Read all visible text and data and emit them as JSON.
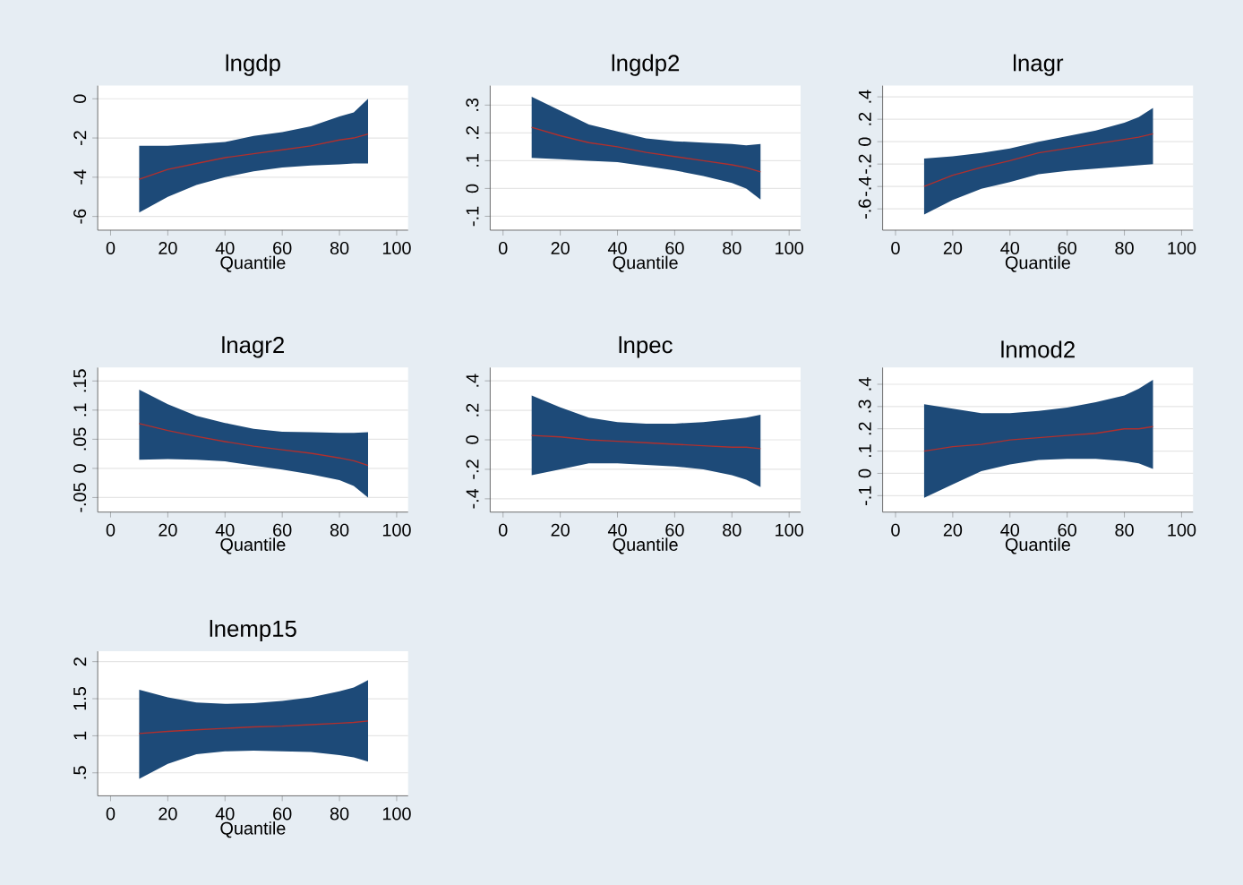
{
  "chart_data": [
    {
      "type": "line",
      "title": "lngdp",
      "xlabel": "Quantile",
      "xlim": [
        -4.5,
        104
      ],
      "xticks": [
        0,
        20,
        40,
        60,
        80,
        100
      ],
      "ylim": [
        -6.7,
        0.67
      ],
      "yticks": [
        -6,
        -4,
        -2,
        0
      ],
      "grid": "y",
      "x": [
        10,
        20,
        30,
        40,
        50,
        60,
        70,
        80,
        85,
        90
      ],
      "series": [
        {
          "color": "#b0302e",
          "values": [
            -4.1,
            -3.6,
            -3.3,
            -3.0,
            -2.8,
            -2.6,
            -2.4,
            -2.1,
            -2.0,
            -1.8
          ],
          "lower": [
            -5.8,
            -5.0,
            -4.4,
            -4.0,
            -3.7,
            -3.5,
            -3.4,
            -3.35,
            -3.3,
            -3.3
          ],
          "upper": [
            -2.4,
            -2.4,
            -2.3,
            -2.2,
            -1.9,
            -1.7,
            -1.4,
            -0.9,
            -0.7,
            0
          ]
        }
      ]
    },
    {
      "type": "line",
      "title": "lngdp2",
      "xlabel": "Quantile",
      "xlim": [
        -4.5,
        104
      ],
      "xticks": [
        0,
        20,
        40,
        60,
        80,
        100
      ],
      "ylim": [
        -0.15,
        0.37
      ],
      "yticks": [
        {
          "value": -0.1,
          "label": "-.1"
        },
        0,
        {
          "value": 0.1,
          "label": ".1"
        },
        {
          "value": 0.2,
          "label": ".2"
        },
        {
          "value": 0.3,
          "label": ".3"
        }
      ],
      "grid": "y",
      "x": [
        10,
        20,
        30,
        40,
        50,
        60,
        70,
        80,
        85,
        90
      ],
      "series": [
        {
          "color": "#b0302e",
          "values": [
            0.22,
            0.19,
            0.165,
            0.15,
            0.13,
            0.115,
            0.1,
            0.085,
            0.075,
            0.06
          ],
          "lower": [
            0.11,
            0.105,
            0.1,
            0.095,
            0.08,
            0.065,
            0.045,
            0.02,
            0,
            -0.04
          ],
          "upper": [
            0.33,
            0.28,
            0.23,
            0.205,
            0.18,
            0.17,
            0.165,
            0.16,
            0.155,
            0.16
          ]
        }
      ]
    },
    {
      "type": "line",
      "title": "lnagr",
      "xlabel": "Quantile",
      "xlim": [
        -4.5,
        104
      ],
      "xticks": [
        0,
        20,
        40,
        60,
        80,
        100
      ],
      "ylim": [
        -0.79,
        0.5
      ],
      "yticks": [
        {
          "value": -0.6,
          "label": "-.6"
        },
        {
          "value": -0.4,
          "label": "-.4"
        },
        {
          "value": -0.2,
          "label": "-.2"
        },
        0,
        {
          "value": 0.2,
          "label": ".2"
        },
        {
          "value": 0.4,
          "label": ".4"
        }
      ],
      "grid": "y",
      "x": [
        10,
        20,
        30,
        40,
        50,
        60,
        70,
        80,
        85,
        90
      ],
      "series": [
        {
          "color": "#b0302e",
          "values": [
            -0.4,
            -0.3,
            -0.23,
            -0.17,
            -0.1,
            -0.06,
            -0.02,
            0.02,
            0.04,
            0.07
          ],
          "lower": [
            -0.65,
            -0.52,
            -0.42,
            -0.36,
            -0.29,
            -0.26,
            -0.24,
            -0.22,
            -0.21,
            -0.2
          ],
          "upper": [
            -0.15,
            -0.13,
            -0.1,
            -0.06,
            0,
            0.05,
            0.1,
            0.17,
            0.22,
            0.3
          ]
        }
      ]
    },
    {
      "type": "line",
      "title": "lnagr2",
      "xlabel": "Quantile",
      "xlim": [
        -4.5,
        104
      ],
      "xticks": [
        0,
        20,
        40,
        60,
        80,
        100
      ],
      "ylim": [
        -0.075,
        0.173
      ],
      "yticks": [
        {
          "value": -0.05,
          "label": "-.05"
        },
        0,
        {
          "value": 0.05,
          "label": ".05"
        },
        {
          "value": 0.1,
          "label": ".1"
        },
        {
          "value": 0.15,
          "label": ".15"
        }
      ],
      "grid": "y",
      "x": [
        10,
        20,
        30,
        40,
        50,
        60,
        70,
        80,
        85,
        90
      ],
      "series": [
        {
          "color": "#b0302e",
          "values": [
            0.077,
            0.065,
            0.055,
            0.046,
            0.038,
            0.032,
            0.026,
            0.018,
            0.013,
            0.005
          ],
          "lower": [
            0.015,
            0.016,
            0.015,
            0.012,
            0.005,
            -0.002,
            -0.01,
            -0.02,
            -0.03,
            -0.05
          ],
          "upper": [
            0.135,
            0.11,
            0.09,
            0.078,
            0.068,
            0.063,
            0.062,
            0.061,
            0.061,
            0.062
          ]
        }
      ]
    },
    {
      "type": "line",
      "title": "lnpec",
      "xlabel": "Quantile",
      "xlim": [
        -4.5,
        104
      ],
      "xticks": [
        0,
        20,
        40,
        60,
        80,
        100
      ],
      "ylim": [
        -0.49,
        0.49
      ],
      "yticks": [
        {
          "value": -0.4,
          "label": "-.4"
        },
        {
          "value": -0.2,
          "label": "-.2"
        },
        0,
        {
          "value": 0.2,
          "label": ".2"
        },
        {
          "value": 0.4,
          "label": ".4"
        }
      ],
      "grid": "y",
      "x": [
        10,
        20,
        30,
        40,
        50,
        60,
        70,
        80,
        85,
        90
      ],
      "series": [
        {
          "color": "#b0302e",
          "values": [
            0.03,
            0.02,
            0,
            -0.01,
            -0.02,
            -0.03,
            -0.04,
            -0.05,
            -0.05,
            -0.06
          ],
          "lower": [
            -0.24,
            -0.2,
            -0.16,
            -0.16,
            -0.17,
            -0.18,
            -0.2,
            -0.24,
            -0.27,
            -0.32
          ],
          "upper": [
            0.3,
            0.22,
            0.15,
            0.12,
            0.11,
            0.11,
            0.12,
            0.14,
            0.15,
            0.17
          ]
        }
      ]
    },
    {
      "type": "line",
      "title": "lnmod2",
      "xlabel": "Quantile",
      "xlim": [
        -4.5,
        104
      ],
      "xticks": [
        0,
        20,
        40,
        60,
        80,
        100
      ],
      "ylim": [
        -0.174,
        0.475
      ],
      "yticks": [
        {
          "value": -0.1,
          "label": "-.1"
        },
        0,
        {
          "value": 0.1,
          "label": ".1"
        },
        {
          "value": 0.2,
          "label": ".2"
        },
        {
          "value": 0.3,
          "label": ".3"
        },
        {
          "value": 0.4,
          "label": ".4"
        }
      ],
      "grid": "y",
      "x": [
        10,
        20,
        30,
        40,
        50,
        60,
        70,
        80,
        85,
        90
      ],
      "series": [
        {
          "color": "#b0302e",
          "values": [
            0.1,
            0.12,
            0.13,
            0.15,
            0.16,
            0.17,
            0.18,
            0.2,
            0.2,
            0.21
          ],
          "lower": [
            -0.11,
            -0.05,
            0.01,
            0.04,
            0.06,
            0.065,
            0.065,
            0.055,
            0.045,
            0.02
          ],
          "upper": [
            0.31,
            0.29,
            0.27,
            0.27,
            0.28,
            0.295,
            0.32,
            0.35,
            0.38,
            0.42
          ]
        }
      ]
    },
    {
      "type": "line",
      "title": "lnemp15",
      "xlabel": "Quantile",
      "xlim": [
        -4.5,
        104
      ],
      "xticks": [
        0,
        20,
        40,
        60,
        80,
        100
      ],
      "ylim": [
        0.19,
        2.14
      ],
      "yticks": [
        {
          "value": 0.5,
          "label": ".5"
        },
        1,
        1.5,
        2
      ],
      "grid": "y",
      "x": [
        10,
        20,
        30,
        40,
        50,
        60,
        70,
        80,
        85,
        90
      ],
      "series": [
        {
          "color": "#b0302e",
          "values": [
            1.03,
            1.06,
            1.08,
            1.1,
            1.12,
            1.13,
            1.15,
            1.17,
            1.18,
            1.2
          ],
          "lower": [
            0.42,
            0.62,
            0.75,
            0.79,
            0.8,
            0.79,
            0.78,
            0.74,
            0.71,
            0.65
          ],
          "upper": [
            1.62,
            1.52,
            1.45,
            1.43,
            1.44,
            1.47,
            1.52,
            1.6,
            1.65,
            1.75
          ]
        }
      ]
    }
  ]
}
